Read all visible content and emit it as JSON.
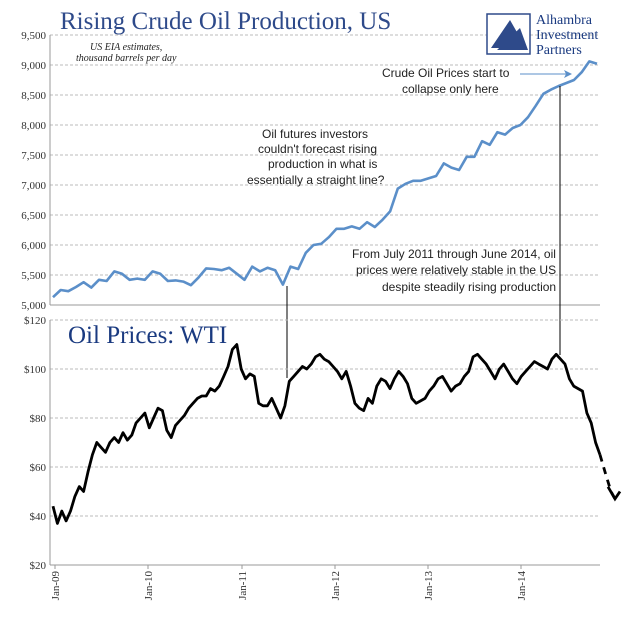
{
  "chart_data": [
    {
      "type": "line",
      "title": "Rising Crude Oil Production, US",
      "subtitle_lines": [
        "US EIA estimates,",
        "thousand barrels per day"
      ],
      "ylim": [
        5000,
        9500
      ],
      "yticks": [
        "5,000",
        "5,500",
        "6,000",
        "6,500",
        "7,000",
        "7,500",
        "8,000",
        "8,500",
        "9,000",
        "9,500"
      ],
      "grid": true,
      "color": "#5b8fc9",
      "series": [
        {
          "values": [
            5130,
            5250,
            5230,
            5300,
            5380,
            5290,
            5420,
            5400,
            5560,
            5520,
            5420,
            5440,
            5420,
            5560,
            5520,
            5400,
            5410,
            5390,
            5330,
            5460,
            5610,
            5600,
            5580,
            5620,
            5520,
            5420,
            5640,
            5560,
            5620,
            5580,
            5340,
            5640,
            5600,
            5870,
            6000,
            6020,
            6130,
            6270,
            6270,
            6310,
            6270,
            6380,
            6300,
            6420,
            6560,
            6940,
            7020,
            7070,
            7070,
            7110,
            7150,
            7360,
            7290,
            7250,
            7470,
            7470,
            7730,
            7670,
            7880,
            7840,
            7950,
            8000,
            8130,
            8320,
            8520,
            8590,
            8650,
            8700,
            8750,
            8880,
            9060,
            9020
          ]
        }
      ],
      "annotations": [
        {
          "lines": [
            "Crude Oil Prices start to",
            "collapse only here"
          ]
        },
        {
          "lines": [
            "Oil futures investors",
            "couldn't forecast rising",
            "production in what is",
            "essentially a straight line?"
          ]
        },
        {
          "lines": [
            "From July 2011 through June 2014, oil",
            "prices were relatively stable in the US",
            "despite steadily rising production"
          ]
        }
      ]
    },
    {
      "type": "line",
      "title": "Oil Prices: WTI",
      "ylim": [
        20,
        120
      ],
      "yticks": [
        "$20",
        "$40",
        "$60",
        "$80",
        "$100",
        "$120"
      ],
      "xticks": [
        "Jan-09",
        "Jan-10",
        "Jan-11",
        "Jan-12",
        "Jan-13",
        "Jan-14"
      ],
      "grid": true,
      "color": "#000000",
      "series": [
        {
          "values": [
            44,
            37,
            42,
            38,
            42,
            48,
            52,
            50,
            58,
            65,
            70,
            68,
            66,
            70,
            72,
            70,
            74,
            71,
            73,
            78,
            80,
            82,
            76,
            80,
            84,
            83,
            75,
            72,
            77,
            79,
            81,
            84,
            86,
            88,
            89,
            89,
            92,
            91,
            93,
            97,
            101,
            108,
            110,
            100,
            96,
            98,
            97,
            86,
            85,
            85,
            88,
            84,
            80,
            85,
            95,
            97,
            99,
            101,
            100,
            102,
            105,
            106,
            104,
            103,
            101,
            99,
            96,
            99,
            93,
            86,
            84,
            83,
            88,
            86,
            93,
            96,
            95,
            92,
            96,
            99,
            97,
            94,
            88,
            86,
            87,
            88,
            91,
            93,
            96,
            97,
            94,
            91,
            93,
            94,
            97,
            99,
            105,
            106,
            104,
            102,
            99,
            96,
            100,
            102,
            99,
            96,
            94,
            97,
            99,
            101,
            103,
            102,
            101,
            100,
            104,
            106,
            104,
            102,
            96,
            93,
            92,
            91,
            82,
            78,
            70,
            65
          ],
          "projection": [
            65,
            58,
            50,
            47,
            50
          ]
        }
      ]
    }
  ],
  "logo": {
    "lines": [
      "Alhambra",
      "Investment",
      "Partners"
    ]
  }
}
